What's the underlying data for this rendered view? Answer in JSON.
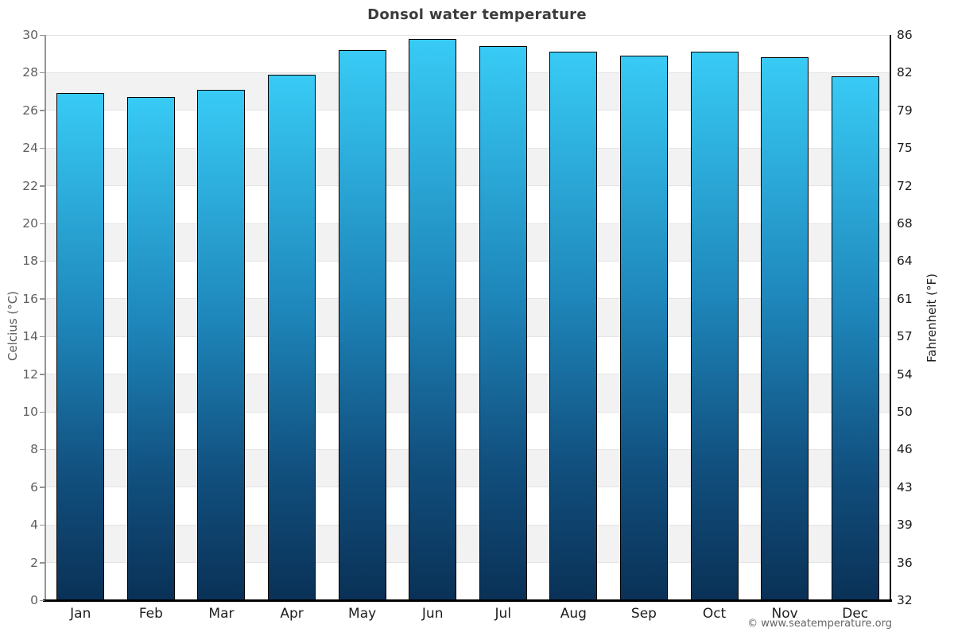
{
  "title": "Donsol water temperature",
  "footer": "© www.seatemperature.org",
  "chart_data": {
    "type": "bar",
    "title": "Donsol water temperature",
    "categories": [
      "Jan",
      "Feb",
      "Mar",
      "Apr",
      "May",
      "Jun",
      "Jul",
      "Aug",
      "Sep",
      "Oct",
      "Nov",
      "Dec"
    ],
    "values": [
      26.9,
      26.7,
      27.1,
      27.9,
      29.2,
      29.8,
      29.4,
      29.1,
      28.9,
      29.1,
      28.8,
      27.8
    ],
    "unit": "°C",
    "ylabel_left": "Celcius (°C)",
    "ylabel_right": "Fahrenheit (°F)",
    "xlabel": "",
    "ylim_celsius": [
      0,
      30
    ],
    "celsius_ticks": [
      30,
      28,
      26,
      24,
      22,
      20,
      18,
      16,
      14,
      12,
      10,
      8,
      6,
      4,
      2,
      0
    ],
    "fahrenheit_ticks": [
      86,
      82,
      79,
      75,
      72,
      68,
      64,
      61,
      57,
      54,
      50,
      46,
      43,
      39,
      36,
      32
    ],
    "grid": "alternating horizontal bands every 2°C, light gridlines at each tick",
    "legend": "none",
    "colors": {
      "bar_gradient_top": "#38cbf5",
      "bar_gradient_mid": "#1e86ba",
      "bar_gradient_bottom": "#0a3156",
      "bar_border": "#000000",
      "band_gray": "#f2f2f2",
      "band_white": "#ffffff",
      "gridline": "#e4e4e4",
      "left_axis": "#949494",
      "right_axis": "#131313",
      "title_text": "#3c3c3c",
      "left_tick_text": "#5e5e5e",
      "right_tick_text": "#1c1c1c",
      "background": "#ffffff"
    }
  }
}
